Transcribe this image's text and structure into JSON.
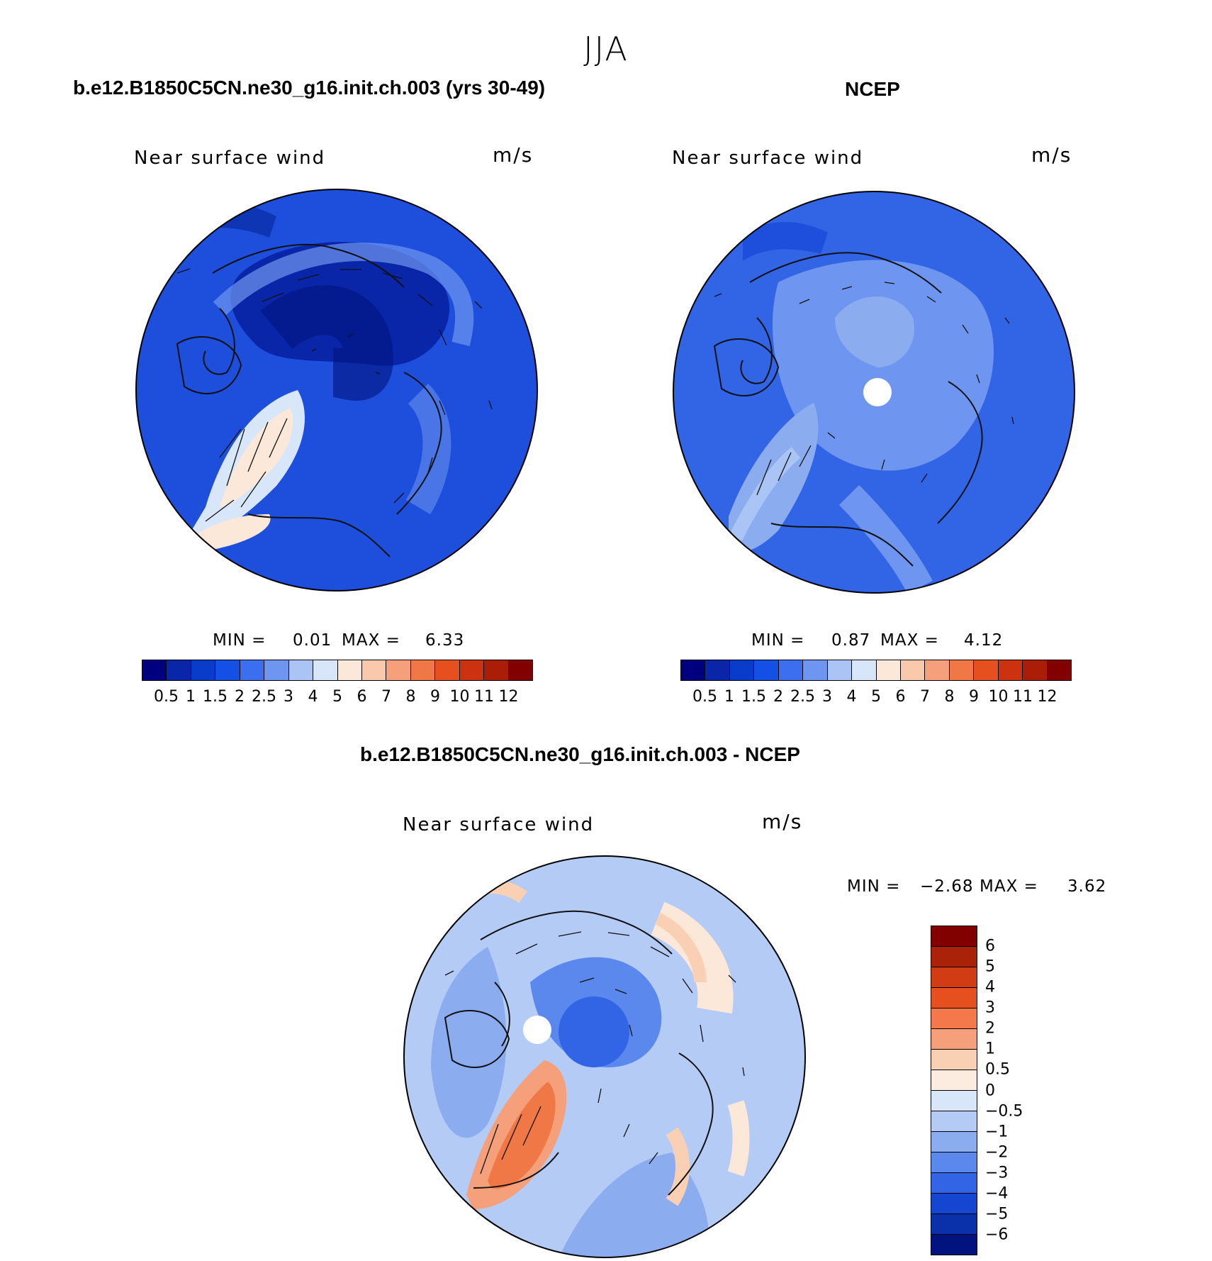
{
  "figure": {
    "season": "JJA"
  },
  "panels": {
    "model": {
      "title": "b.e12.B1850C5CN.ne30_g16.init.ch.003 (yrs 30-49)",
      "variable": "Near surface wind",
      "units": "m/s",
      "min_label": "MIN =",
      "min_value": "0.01",
      "max_label": "MAX =",
      "max_value": "6.33"
    },
    "obs": {
      "title": "NCEP",
      "variable": "Near surface wind",
      "units": "m/s",
      "min_label": "MIN =",
      "min_value": "0.87",
      "max_label": "MAX =",
      "max_value": "4.12"
    },
    "diff": {
      "title": "b.e12.B1850C5CN.ne30_g16.init.ch.003 - NCEP",
      "variable": "Near surface wind",
      "units": "m/s",
      "min_label": "MIN =",
      "min_value": "−2.68",
      "max_label": "MAX =",
      "max_value": "3.62"
    }
  },
  "colorbars": {
    "absolute": {
      "colors": [
        "#00007f",
        "#0a26a8",
        "#0a3ccc",
        "#1450e6",
        "#3c6ef0",
        "#6e96f0",
        "#aac4f5",
        "#d8e6fa",
        "#fce8d8",
        "#fac8aa",
        "#f5a07a",
        "#f07846",
        "#e6501e",
        "#cc3210",
        "#aa1e08",
        "#820000"
      ],
      "tick_labels": [
        "0.5",
        "1",
        "1.5",
        "2",
        "2.5",
        "3",
        "4",
        "5",
        "6",
        "7",
        "8",
        "9",
        "10",
        "11",
        "12"
      ]
    },
    "difference": {
      "colors": [
        "#820000",
        "#aa2208",
        "#d23c14",
        "#e6501e",
        "#f5784a",
        "#f5a07a",
        "#fad0b4",
        "#fcece0",
        "#d8e6fa",
        "#b4ccf5",
        "#8cacf0",
        "#5a88ec",
        "#3264e6",
        "#1446d2",
        "#0a30aa",
        "#00137f"
      ],
      "tick_labels": [
        "6",
        "5",
        "4",
        "3",
        "2",
        "1",
        "0.5",
        "0",
        "−0.5",
        "−1",
        "−2",
        "−3",
        "−4",
        "−5",
        "−6"
      ]
    }
  }
}
